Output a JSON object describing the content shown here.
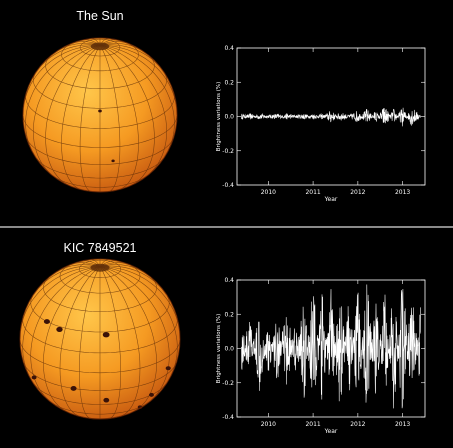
{
  "panels": [
    {
      "star_name": "The Sun",
      "starspots": [
        {
          "lat": 28,
          "lon": 0
        },
        {
          "lat": -12,
          "lon": 10
        }
      ]
    },
    {
      "star_name": "KIC 7849521",
      "starspots": [
        {
          "lat": 30,
          "lon": -50
        },
        {
          "lat": 28,
          "lon": -35
        },
        {
          "lat": 28,
          "lon": 5
        },
        {
          "lat": -18,
          "lon": -60
        },
        {
          "lat": -15,
          "lon": -20
        },
        {
          "lat": -25,
          "lon": 5
        },
        {
          "lat": -30,
          "lon": 48
        },
        {
          "lat": -45,
          "lon": 45
        },
        {
          "lat": -10,
          "lon": 60
        }
      ]
    }
  ],
  "chart_data": [
    {
      "type": "line",
      "title": "",
      "xlabel": "Year",
      "ylabel": "Brightness variations (%)",
      "xlim": [
        2009.3,
        2013.5
      ],
      "ylim": [
        -0.4,
        0.4
      ],
      "x_ticks": [
        2010,
        2011,
        2012,
        2013
      ],
      "y_ticks": [
        0.4,
        0.2,
        0.0,
        -0.2,
        -0.4
      ],
      "x_tick_labels": [
        "2010",
        "2011",
        "2012",
        "2013"
      ],
      "y_tick_labels": [
        "0.4",
        "0.2",
        "0.0",
        "-0.2",
        "-0.4"
      ],
      "grid": false,
      "series": [
        {
          "color": "#ffffff",
          "x": [
            2009.4,
            2009.6,
            2009.8,
            2010.0,
            2010.2,
            2010.4,
            2010.6,
            2010.8,
            2011.0,
            2011.2,
            2011.4,
            2011.6,
            2011.8,
            2012.0,
            2012.2,
            2012.4,
            2012.6,
            2012.8,
            2013.0,
            2013.2,
            2013.4
          ],
          "y": [
            0.01,
            -0.01,
            0.01,
            0.0,
            -0.01,
            0.01,
            0.0,
            0.01,
            -0.01,
            0.01,
            -0.03,
            0.02,
            0.0,
            0.03,
            -0.04,
            0.03,
            -0.06,
            0.04,
            -0.05,
            0.05,
            0.0
          ]
        }
      ]
    },
    {
      "type": "line",
      "title": "",
      "xlabel": "Year",
      "ylabel": "Brightness variations (%)",
      "xlim": [
        2009.3,
        2013.5
      ],
      "ylim": [
        -0.4,
        0.4
      ],
      "x_ticks": [
        2010,
        2011,
        2012,
        2013
      ],
      "y_ticks": [
        0.4,
        0.2,
        0.0,
        -0.2,
        -0.4
      ],
      "x_tick_labels": [
        "2010",
        "2011",
        "2012",
        "2013"
      ],
      "y_tick_labels": [
        "0.4",
        "0.2",
        "0.0",
        "-0.2",
        "-0.4"
      ],
      "grid": false,
      "series": [
        {
          "color": "#ffffff",
          "x": [
            2009.4,
            2009.6,
            2009.8,
            2010.0,
            2010.2,
            2010.4,
            2010.6,
            2010.8,
            2011.0,
            2011.2,
            2011.4,
            2011.6,
            2011.8,
            2012.0,
            2012.2,
            2012.4,
            2012.6,
            2012.8,
            2013.0,
            2013.2,
            2013.4
          ],
          "y": [
            0.1,
            -0.15,
            0.2,
            -0.1,
            0.15,
            -0.2,
            0.1,
            -0.25,
            0.35,
            -0.3,
            0.3,
            -0.35,
            0.25,
            -0.3,
            0.35,
            -0.25,
            0.3,
            -0.35,
            0.4,
            -0.3,
            0.2
          ]
        }
      ]
    }
  ]
}
